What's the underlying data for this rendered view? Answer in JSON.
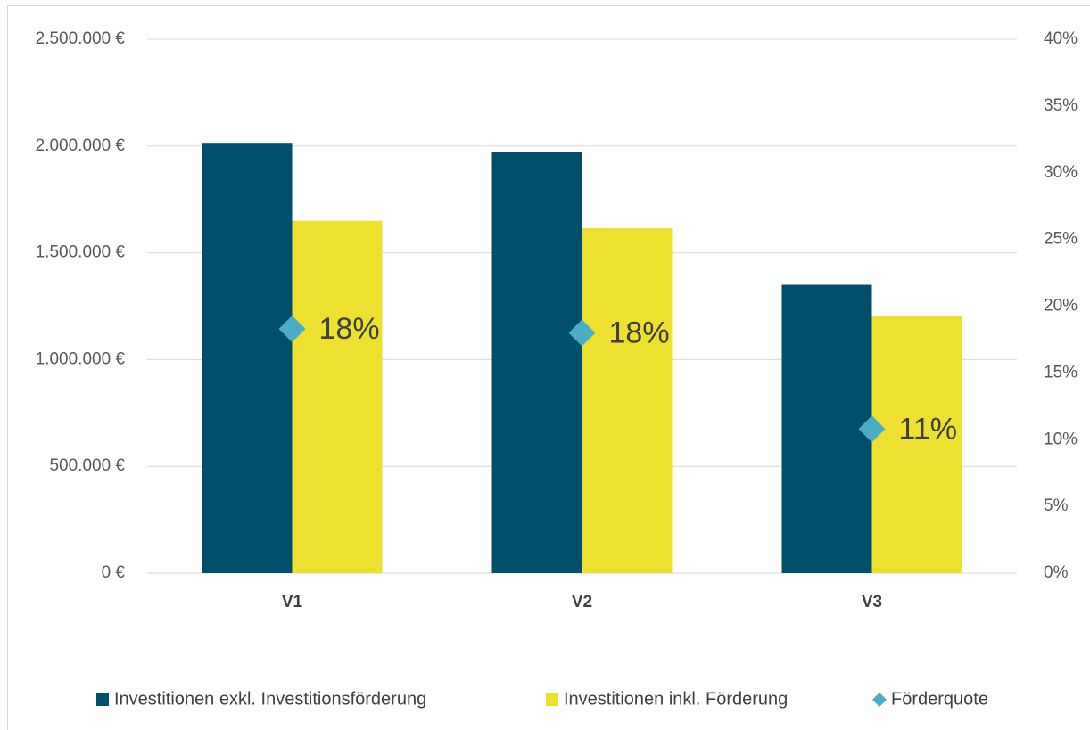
{
  "chart_data": {
    "type": "bar",
    "categories": [
      "V1",
      "V2",
      "V3"
    ],
    "series": [
      {
        "name": "Investitionen exkl. Investitionsförderung",
        "color": "#004f6b",
        "values": [
          2015000,
          1970000,
          1350000
        ]
      },
      {
        "name": "Investitionen inkl. Förderung",
        "color": "#ede02f",
        "values": [
          1650000,
          1615000,
          1205000
        ]
      },
      {
        "name": "Förderquote",
        "color": "#4bacc6",
        "axis": "y2",
        "marker": "diamond",
        "values": [
          18.3,
          18.0,
          10.8
        ],
        "value_labels": [
          "18%",
          "18%",
          "11%"
        ]
      }
    ],
    "ylim": [
      0,
      2500000
    ],
    "yticks": [
      {
        "value": 0,
        "label": "0 €"
      },
      {
        "value": 500000,
        "label": "500.000 €"
      },
      {
        "value": 1000000,
        "label": "1.000.000 €"
      },
      {
        "value": 1500000,
        "label": "1.500.000 €"
      },
      {
        "value": 2000000,
        "label": "2.000.000 €"
      },
      {
        "value": 2500000,
        "label": "2.500.000 €"
      }
    ],
    "y2lim": [
      0,
      40
    ],
    "y2ticks": [
      {
        "value": 0,
        "label": "0%"
      },
      {
        "value": 5,
        "label": "5%"
      },
      {
        "value": 10,
        "label": "10%"
      },
      {
        "value": 15,
        "label": "15%"
      },
      {
        "value": 20,
        "label": "20%"
      },
      {
        "value": 25,
        "label": "25%"
      },
      {
        "value": 30,
        "label": "30%"
      },
      {
        "value": 35,
        "label": "35%"
      },
      {
        "value": 40,
        "label": "40%"
      }
    ],
    "grid": true,
    "legend": "bottom"
  }
}
